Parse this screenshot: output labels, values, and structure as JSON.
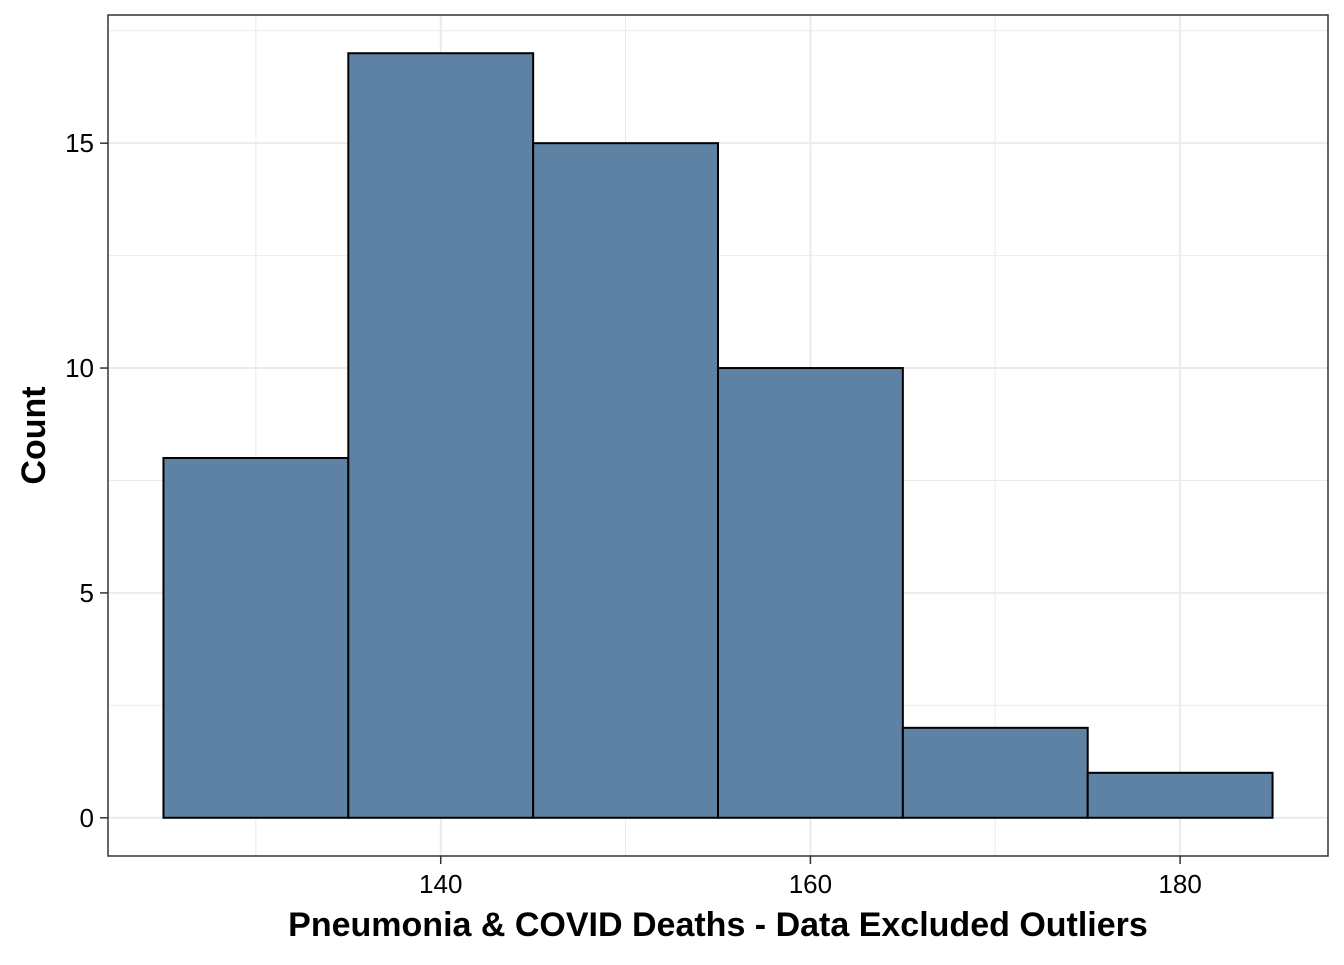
{
  "chart_data": {
    "type": "bar",
    "subtype": "histogram",
    "title": "",
    "xlabel": "Pneumonia & COVID Deaths - Data Excluded Outliers",
    "ylabel": "Count",
    "bins": [
      {
        "start": 125,
        "end": 135,
        "count": 8
      },
      {
        "start": 135,
        "end": 145,
        "count": 17
      },
      {
        "start": 145,
        "end": 155,
        "count": 15
      },
      {
        "start": 155,
        "end": 165,
        "count": 10
      },
      {
        "start": 165,
        "end": 175,
        "count": 2
      },
      {
        "start": 175,
        "end": 185,
        "count": 1
      }
    ],
    "xlim": [
      122,
      188
    ],
    "ylim": [
      -0.85,
      17.85
    ],
    "xticks": [
      140,
      160,
      180
    ],
    "yticks": [
      0,
      5,
      10,
      15
    ],
    "xticks_minor": [
      130,
      150,
      170
    ],
    "yticks_minor": [
      2.5,
      7.5,
      12.5,
      17.5
    ],
    "grid": true,
    "legend": "none",
    "colors": {
      "bar_fill": "#5e82a3",
      "bar_stroke": "#000000",
      "grid": "#ebebeb",
      "panel_border": "#333333",
      "background": "#ffffff"
    }
  }
}
